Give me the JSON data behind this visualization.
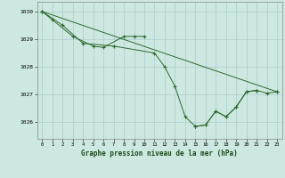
{
  "title": "Graphe pression niveau de la mer (hPa)",
  "background_color": "#cce8e0",
  "grid_color": "#aacccc",
  "line_color": "#2d6a2d",
  "xlim": [
    -0.5,
    23.5
  ],
  "ylim": [
    1025.4,
    1030.35
  ],
  "yticks": [
    1026,
    1027,
    1028,
    1029,
    1030
  ],
  "xticks": [
    0,
    1,
    2,
    3,
    4,
    5,
    6,
    7,
    8,
    9,
    10,
    11,
    12,
    13,
    14,
    15,
    16,
    17,
    18,
    19,
    20,
    21,
    22,
    23
  ],
  "lines": [
    {
      "points": [
        [
          0,
          1030.0
        ],
        [
          1,
          1029.7
        ],
        [
          3,
          1029.1
        ],
        [
          5,
          1028.75
        ],
        [
          6,
          1028.7
        ],
        [
          8,
          1029.1
        ],
        [
          9,
          1029.1
        ],
        [
          10,
          1029.1
        ]
      ]
    },
    {
      "points": [
        [
          0,
          1030.0
        ],
        [
          2,
          1029.5
        ],
        [
          4,
          1028.85
        ],
        [
          7,
          1028.75
        ],
        [
          11,
          1028.5
        ],
        [
          12,
          1028.0
        ],
        [
          13,
          1027.3
        ],
        [
          14,
          1026.2
        ],
        [
          15,
          1025.85
        ],
        [
          16,
          1025.9
        ],
        [
          17,
          1026.4
        ],
        [
          18,
          1026.2
        ],
        [
          19,
          1026.55
        ],
        [
          20,
          1027.1
        ],
        [
          21,
          1027.15
        ]
      ]
    },
    {
      "points": [
        [
          0,
          1030.0
        ],
        [
          23,
          1027.1
        ]
      ]
    },
    {
      "points": [
        [
          15,
          1025.85
        ],
        [
          16,
          1025.9
        ],
        [
          17,
          1026.4
        ],
        [
          18,
          1026.2
        ],
        [
          19,
          1026.55
        ],
        [
          20,
          1027.1
        ],
        [
          21,
          1027.15
        ],
        [
          22,
          1027.05
        ],
        [
          23,
          1027.1
        ]
      ]
    }
  ]
}
